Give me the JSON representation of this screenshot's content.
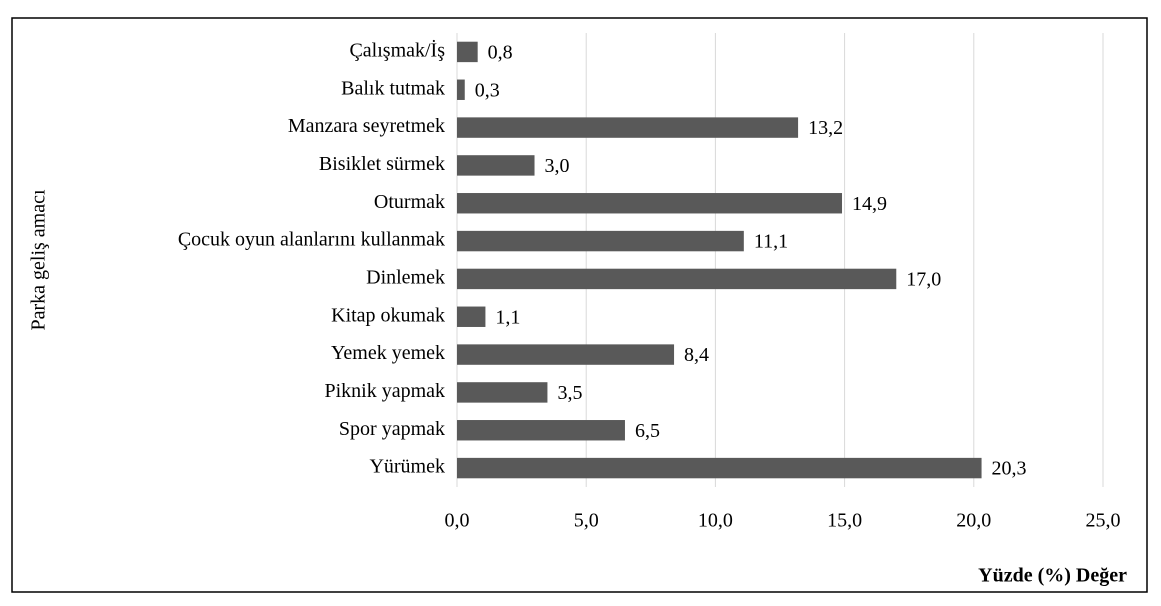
{
  "chart_data": {
    "type": "barh",
    "categories": [
      "Çalışmak/İş",
      "Balık tutmak",
      "Manzara seyretmek",
      "Bisiklet sürmek",
      "Oturmak",
      "Çocuk oyun alanlarını kullanmak",
      "Dinlemek",
      "Kitap okumak",
      "Yemek yemek",
      "Piknik yapmak",
      "Spor yapmak",
      "Yürümek"
    ],
    "values": [
      0.8,
      0.3,
      13.2,
      3.0,
      14.9,
      11.1,
      17.0,
      1.1,
      8.4,
      3.5,
      6.5,
      20.3
    ],
    "value_labels": [
      "0,8",
      "0,3",
      "13,2",
      "3,0",
      "14,9",
      "11,1",
      "17,0",
      "1,1",
      "8,4",
      "3,5",
      "6,5",
      "20,3"
    ],
    "color": "#595959",
    "xlim": [
      0,
      25
    ],
    "xticks": [
      {
        "value": 0,
        "label": "0,0"
      },
      {
        "value": 5,
        "label": "5,0"
      },
      {
        "value": 10,
        "label": "10,0"
      },
      {
        "value": 15,
        "label": "15,0"
      },
      {
        "value": 20,
        "label": "20,0"
      },
      {
        "value": 25,
        "label": "25,0"
      }
    ],
    "xlabel": "Yüzde (%) Değer",
    "ylabel": "Parka geliş amacı",
    "grid": true
  }
}
